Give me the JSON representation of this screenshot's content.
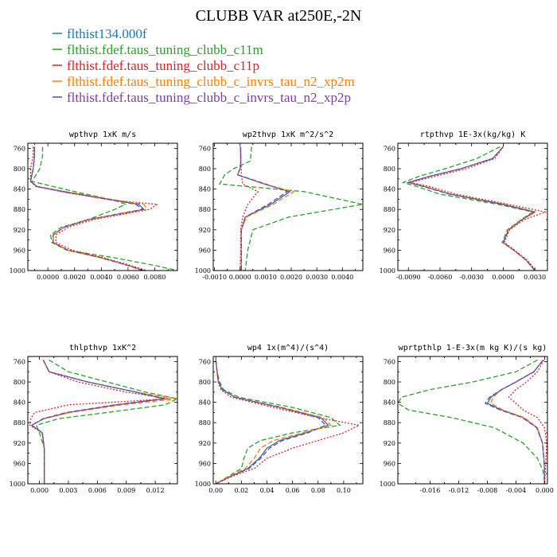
{
  "figure": {
    "title": "CLUBB VAR at250E,-2N"
  },
  "legend": [
    {
      "name": "flthist134.000f",
      "color": "#1f77b4"
    },
    {
      "name": "flthist.fdef.taus_tuning_clubb_c11m",
      "color": "#2ca02c"
    },
    {
      "name": "flthist.fdef.taus_tuning_clubb_c11p",
      "color": "#d62728"
    },
    {
      "name": "flthist.fdef.taus_tuning_clubb_c_invrs_tau_n2_xp2m",
      "color": "#ff7f0e"
    },
    {
      "name": "flthist.fdef.taus_tuning_clubb_c_invrs_tau_n2_xp2p",
      "color": "#7f3fa0"
    }
  ],
  "chart_data": [
    {
      "type": "line",
      "title": "wpthvp  1xK m/s",
      "xlim": [
        -0.0015,
        0.0097
      ],
      "ylim": [
        1000,
        750
      ],
      "xticks": [
        0.0,
        0.002,
        0.004,
        0.006,
        0.008
      ],
      "xtick_labels": [
        "0.0000",
        "0.0020",
        "0.0040",
        "0.0060",
        "0.0080"
      ],
      "yticks": [
        760,
        800,
        840,
        880,
        920,
        960,
        1000
      ],
      "y": [
        757,
        775,
        800,
        825,
        835,
        845,
        862,
        870,
        880,
        900,
        915,
        930,
        945,
        960,
        975,
        990,
        1000
      ],
      "series": [
        {
          "values": [
            -0.001,
            -0.001,
            -0.0011,
            -0.0013,
            -0.0008,
            0.0012,
            0.005,
            0.0068,
            0.0072,
            0.003,
            0.0012,
            0.0004,
            0.0004,
            0.0015,
            0.004,
            0.006,
            0.0072
          ]
        },
        {
          "values": [
            -0.0004,
            -0.0004,
            -0.0006,
            -0.0012,
            0.0004,
            0.002,
            0.005,
            0.0058,
            0.005,
            0.003,
            0.001,
            0.0002,
            0.0003,
            0.0014,
            0.005,
            0.008,
            0.0097
          ]
        },
        {
          "values": [
            -0.0011,
            -0.0011,
            -0.0013,
            -0.0013,
            -0.0009,
            0.001,
            0.0048,
            0.0082,
            0.0076,
            0.0034,
            0.0015,
            0.0006,
            0.0006,
            0.0018,
            0.0042,
            0.0062,
            0.0074
          ]
        },
        {
          "values": [
            -0.001,
            -0.001,
            -0.0011,
            -0.0013,
            -0.0008,
            0.0013,
            0.0052,
            0.0072,
            0.0074,
            0.0031,
            0.0012,
            0.0004,
            0.0004,
            0.0015,
            0.004,
            0.006,
            0.0072
          ]
        },
        {
          "values": [
            -0.001,
            -0.001,
            -0.0011,
            -0.0013,
            -0.0008,
            0.0011,
            0.0049,
            0.0066,
            0.0071,
            0.003,
            0.0012,
            0.0004,
            0.0004,
            0.0015,
            0.004,
            0.006,
            0.0071
          ]
        }
      ]
    },
    {
      "type": "line",
      "title": "wp2thvp  1xK m^2/s^2",
      "xlim": [
        -0.00105,
        0.0048
      ],
      "ylim": [
        1000,
        750
      ],
      "xticks": [
        -0.001,
        0.0,
        0.001,
        0.002,
        0.003,
        0.004
      ],
      "xtick_labels": [
        "-0.0010",
        "0.0000",
        "0.0010",
        "0.0020",
        "0.0030",
        "0.0040"
      ],
      "yticks": [
        760,
        800,
        840,
        880,
        920,
        960,
        1000
      ],
      "y": [
        757,
        785,
        800,
        812,
        830,
        845,
        870,
        895,
        920,
        960,
        1000
      ],
      "series": [
        {
          "values": [
            2e-05,
            3e-05,
            0.0,
            -0.0001,
            0.00095,
            0.00195,
            0.0012,
            0.0002,
            5e-05,
            5e-05,
            5e-05
          ]
        },
        {
          "values": [
            0.00045,
            0.0004,
            -0.00025,
            -0.0006,
            -0.0008,
            0.0025,
            0.0048,
            0.0019,
            0.0005,
            0.0003,
            0.0002
          ]
        },
        {
          "values": [
            1e-05,
            2e-05,
            5e-05,
            5e-05,
            0.0001,
            0.0007,
            0.0003,
            0.0001,
            2e-05,
            2e-05,
            0.0
          ]
        },
        {
          "values": [
            2e-05,
            3e-05,
            0.0,
            -0.0001,
            0.0009,
            0.0021,
            0.0013,
            0.00025,
            5e-05,
            5e-05,
            5e-05
          ]
        },
        {
          "values": [
            2e-05,
            3e-05,
            0.0,
            -0.0001,
            0.001,
            0.00185,
            0.0011,
            0.0002,
            5e-05,
            5e-05,
            5e-05
          ]
        }
      ]
    },
    {
      "type": "line",
      "title": "rtpthvp  1E-3x(kg/kg) K",
      "xlim": [
        -0.01,
        0.0042
      ],
      "ylim": [
        1000,
        750
      ],
      "xticks": [
        -0.009,
        -0.006,
        -0.003,
        0.0,
        0.003
      ],
      "xtick_labels": [
        "-0.0090",
        "-0.0060",
        "-0.0030",
        "0.0000",
        "0.0030"
      ],
      "yticks": [
        760,
        800,
        840,
        880,
        920,
        960,
        1000
      ],
      "y": [
        757,
        780,
        800,
        815,
        827,
        835,
        850,
        870,
        885,
        900,
        920,
        945,
        960,
        980,
        1000
      ],
      "series": [
        {
          "values": [
            0.0,
            -0.001,
            -0.004,
            -0.007,
            -0.009,
            -0.0075,
            -0.005,
            0.0,
            0.003,
            0.0018,
            0.0005,
            0.0,
            0.001,
            0.0022,
            0.003
          ]
        },
        {
          "values": [
            -0.0003,
            -0.0025,
            -0.0055,
            -0.008,
            -0.0095,
            -0.0082,
            -0.006,
            -0.0005,
            0.0028,
            0.0017,
            0.0004,
            -0.0001,
            0.001,
            0.0022,
            0.003
          ]
        },
        {
          "values": [
            0.0,
            -0.0008,
            -0.0035,
            -0.0065,
            -0.0088,
            -0.007,
            -0.0045,
            0.0005,
            0.004,
            0.002,
            0.0006,
            0.0001,
            0.0011,
            0.0023,
            0.0031
          ]
        },
        {
          "values": [
            0.0,
            -0.001,
            -0.004,
            -0.007,
            -0.009,
            -0.0074,
            -0.005,
            0.0001,
            0.0031,
            0.0018,
            0.0005,
            0.0,
            0.001,
            0.0022,
            0.003
          ]
        },
        {
          "values": [
            0.0,
            -0.001,
            -0.004,
            -0.007,
            -0.009,
            -0.0076,
            -0.0051,
            -0.0001,
            0.0029,
            0.0018,
            0.0005,
            0.0,
            0.001,
            0.0022,
            0.003
          ]
        }
      ]
    },
    {
      "type": "line",
      "title": "thlpthvp  1xK^2",
      "xlim": [
        -0.0012,
        0.0143
      ],
      "ylim": [
        1000,
        750
      ],
      "xticks": [
        0.0,
        0.003,
        0.006,
        0.009,
        0.012
      ],
      "xtick_labels": [
        "0.000",
        "0.003",
        "0.006",
        "0.009",
        "0.012"
      ],
      "yticks": [
        760,
        800,
        840,
        880,
        920,
        960,
        1000
      ],
      "y": [
        757,
        780,
        800,
        820,
        833,
        845,
        860,
        872,
        885,
        900,
        930,
        960,
        990,
        1000
      ],
      "series": [
        {
          "values": [
            0.0004,
            0.001,
            0.005,
            0.01,
            0.013,
            0.008,
            0.003,
            0.0005,
            -0.0008,
            0.0003,
            0.0005,
            0.0005,
            0.0005,
            0.0005
          ]
        },
        {
          "values": [
            0.001,
            0.003,
            0.007,
            0.011,
            0.0143,
            0.013,
            0.007,
            0.002,
            -0.0003,
            0.0,
            0.0005,
            0.0005,
            0.0005,
            0.0005
          ]
        },
        {
          "values": [
            0.0004,
            0.001,
            0.004,
            0.009,
            0.0135,
            0.003,
            -0.0005,
            -0.0009,
            -0.001,
            0.0003,
            0.0005,
            0.0005,
            0.0005,
            0.0005
          ]
        },
        {
          "values": [
            0.0004,
            0.001,
            0.005,
            0.01,
            0.0143,
            0.0085,
            0.0032,
            0.0005,
            -0.0008,
            0.0003,
            0.0005,
            0.0005,
            0.0005,
            0.0005
          ]
        },
        {
          "values": [
            0.0004,
            0.001,
            0.005,
            0.01,
            0.0128,
            0.0078,
            0.0028,
            0.0004,
            -0.0008,
            0.0003,
            0.0005,
            0.0005,
            0.0005,
            0.0005
          ]
        }
      ]
    },
    {
      "type": "line",
      "title": "wp4  1x(m^4)/(s^4)",
      "xlim": [
        -0.002,
        0.115
      ],
      "ylim": [
        1000,
        750
      ],
      "xticks": [
        0.0,
        0.02,
        0.04,
        0.06,
        0.08,
        0.1
      ],
      "xtick_labels": [
        "0.00",
        "0.02",
        "0.04",
        "0.06",
        "0.08",
        "0.10"
      ],
      "yticks": [
        760,
        800,
        840,
        880,
        920,
        960,
        1000
      ],
      "y": [
        757,
        780,
        800,
        815,
        830,
        850,
        870,
        885,
        900,
        915,
        930,
        950,
        970,
        985,
        1000
      ],
      "series": [
        {
          "values": [
            0.0,
            0.001,
            0.002,
            0.005,
            0.015,
            0.05,
            0.082,
            0.088,
            0.07,
            0.05,
            0.04,
            0.034,
            0.025,
            0.012,
            0.0
          ]
        },
        {
          "values": [
            0.0,
            0.001,
            0.003,
            0.006,
            0.018,
            0.06,
            0.09,
            0.097,
            0.06,
            0.035,
            0.025,
            0.022,
            0.02,
            0.01,
            0.0
          ]
        },
        {
          "values": [
            0.0,
            0.001,
            0.002,
            0.004,
            0.012,
            0.045,
            0.08,
            0.112,
            0.1,
            0.08,
            0.06,
            0.04,
            0.03,
            0.013,
            0.0
          ]
        },
        {
          "values": [
            0.0,
            0.001,
            0.002,
            0.005,
            0.015,
            0.052,
            0.084,
            0.09,
            0.068,
            0.045,
            0.035,
            0.03,
            0.023,
            0.011,
            0.0
          ]
        },
        {
          "values": [
            0.0,
            0.001,
            0.002,
            0.005,
            0.015,
            0.05,
            0.08,
            0.086,
            0.072,
            0.052,
            0.042,
            0.035,
            0.026,
            0.012,
            0.0
          ]
        }
      ]
    },
    {
      "type": "line",
      "title": "wprtpthlp  1-E-3x(m kg K)/(s kg)",
      "xlim": [
        -0.0205,
        0.0004
      ],
      "ylim": [
        1000,
        750
      ],
      "xticks": [
        -0.016,
        -0.012,
        -0.008,
        -0.004,
        0.0
      ],
      "xtick_labels": [
        "-0.016",
        "-0.012",
        "-0.008",
        "-0.004",
        "0.000"
      ],
      "yticks": [
        760,
        800,
        840,
        880,
        920,
        960,
        1000
      ],
      "y": [
        757,
        780,
        800,
        815,
        830,
        842,
        855,
        870,
        890,
        920,
        950,
        975,
        1000
      ],
      "series": [
        {
          "values": [
            -0.0002,
            -0.0015,
            -0.004,
            -0.006,
            -0.0075,
            -0.008,
            -0.006,
            -0.003,
            -0.001,
            -0.0003,
            -0.0001,
            0.0,
            0.0
          ]
        },
        {
          "values": [
            -0.001,
            -0.004,
            -0.01,
            -0.016,
            -0.02,
            -0.0205,
            -0.019,
            -0.013,
            -0.007,
            -0.003,
            -0.001,
            -0.0002,
            0.0
          ]
        },
        {
          "values": [
            -0.0001,
            -0.001,
            -0.0025,
            -0.004,
            -0.005,
            -0.004,
            -0.003,
            -0.001,
            0.0,
            0.0003,
            0.0002,
            0.0001,
            0.0
          ]
        },
        {
          "values": [
            -0.0002,
            -0.0015,
            -0.004,
            -0.006,
            -0.0072,
            -0.0075,
            -0.0058,
            -0.0028,
            -0.001,
            -0.0003,
            -0.0001,
            0.0,
            0.0
          ]
        },
        {
          "values": [
            -0.0002,
            -0.0015,
            -0.004,
            -0.006,
            -0.0077,
            -0.0083,
            -0.0062,
            -0.0031,
            -0.0011,
            -0.0003,
            -0.0001,
            0.0,
            0.0
          ]
        }
      ]
    }
  ]
}
